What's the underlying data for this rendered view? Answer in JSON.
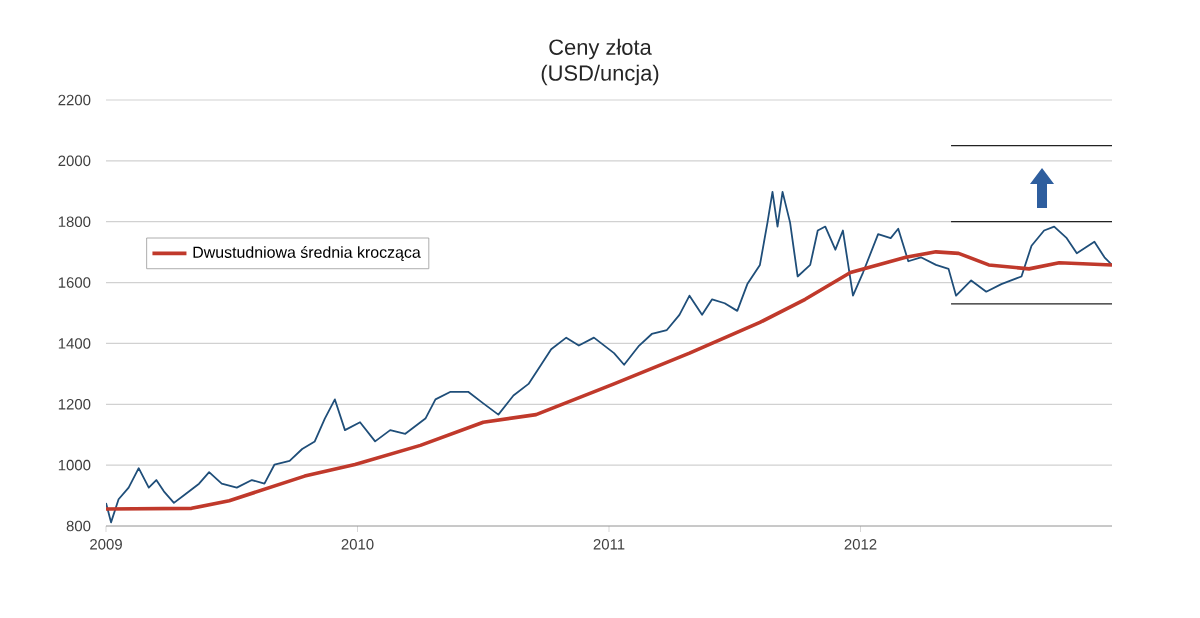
{
  "chart_data": {
    "type": "line",
    "title": "Ceny złota",
    "subtitle": "(USD/uncja)",
    "xlim": [
      2009,
      2013
    ],
    "xticks": [
      2009,
      2010,
      2011,
      2012
    ],
    "ylim": [
      800,
      2200
    ],
    "yticks": [
      800,
      1000,
      1200,
      1400,
      1600,
      1800,
      2000,
      2200
    ],
    "grid": "y",
    "legend": "left",
    "series": [
      {
        "color": "#1f4e79",
        "x": [
          2009.0,
          2009.02,
          2009.05,
          2009.09,
          2009.13,
          2009.17,
          2009.2,
          2009.23,
          2009.27,
          2009.31,
          2009.37,
          2009.41,
          2009.46,
          2009.52,
          2009.58,
          2009.63,
          2009.67,
          2009.73,
          2009.78,
          2009.83,
          2009.87,
          2009.91,
          2009.95,
          2010.01,
          2010.07,
          2010.13,
          2010.19,
          2010.27,
          2010.31,
          2010.37,
          2010.44,
          2010.5,
          2010.56,
          2010.62,
          2010.68,
          2010.73,
          2010.77,
          2010.83,
          2010.88,
          2010.94,
          2011.02,
          2011.06,
          2011.12,
          2011.17,
          2011.23,
          2011.28,
          2011.32,
          2011.37,
          2011.41,
          2011.46,
          2011.51,
          2011.55,
          2011.6,
          2011.63,
          2011.65,
          2011.67,
          2011.69,
          2011.72,
          2011.75,
          2011.8,
          2011.83,
          2011.86,
          2011.9,
          2011.93,
          2011.97,
          2012.01,
          2012.07,
          2012.12,
          2012.15,
          2012.19,
          2012.24,
          2012.3,
          2012.35,
          2012.38,
          2012.44,
          2012.5,
          2012.56,
          2012.64,
          2012.68,
          2012.73,
          2012.77,
          2012.82,
          2012.86,
          2012.93,
          2012.97,
          2013.0
        ],
        "values": [
          876,
          812,
          888,
          926,
          990,
          926,
          951,
          914,
          876,
          901,
          939,
          977,
          939,
          926,
          951,
          939,
          1002,
          1014,
          1053,
          1078,
          1153,
          1216,
          1115,
          1141,
          1078,
          1115,
          1103,
          1153,
          1216,
          1241,
          1241,
          1203,
          1166,
          1229,
          1267,
          1330,
          1381,
          1419,
          1393,
          1419,
          1368,
          1330,
          1393,
          1431,
          1444,
          1494,
          1557,
          1494,
          1545,
          1532,
          1507,
          1595,
          1658,
          1797,
          1898,
          1784,
          1898,
          1797,
          1620,
          1658,
          1771,
          1784,
          1708,
          1771,
          1557,
          1633,
          1759,
          1746,
          1777,
          1670,
          1683,
          1658,
          1645,
          1557,
          1607,
          1570,
          1595,
          1620,
          1721,
          1771,
          1784,
          1746,
          1696,
          1734,
          1683,
          1658
        ]
      },
      {
        "name": "Dwustudniowa średnia krocząca",
        "color": "#c0392b",
        "x": [
          2009.0,
          2009.34,
          2009.49,
          2009.79,
          2009.99,
          2010.25,
          2010.5,
          2010.71,
          2011.02,
          2011.32,
          2011.6,
          2011.78,
          2011.96,
          2012.18,
          2012.3,
          2012.39,
          2012.51,
          2012.67,
          2012.79,
          2013.0
        ],
        "values": [
          856,
          858,
          883,
          964,
          1002,
          1065,
          1141,
          1166,
          1267,
          1368,
          1469,
          1545,
          1633,
          1683,
          1701,
          1696,
          1658,
          1645,
          1665,
          1658
        ]
      },
      {
        "color": "#222222",
        "x": [
          2012.36,
          2013.0
        ],
        "values": [
          2050,
          2050
        ]
      },
      {
        "color": "#222222",
        "x": [
          2012.36,
          2013.0
        ],
        "values": [
          1800,
          1800
        ]
      },
      {
        "color": "#222222",
        "x": [
          2012.36,
          2013.0
        ],
        "values": [
          1530,
          1530
        ]
      }
    ]
  }
}
